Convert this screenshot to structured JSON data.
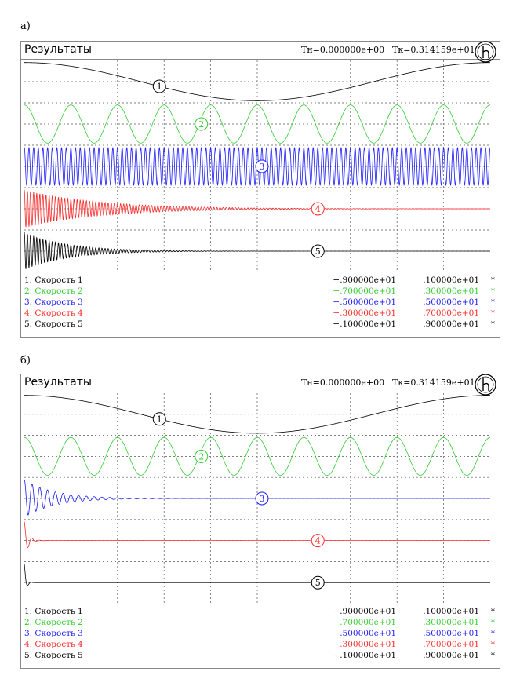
{
  "panels": [
    {
      "label": "а)",
      "title": "Результаты",
      "t_start": "Тн=0.000000e+00",
      "t_end": "Тк=0.314159e+01",
      "legend": [
        {
          "name": "1. Скорость 1",
          "min": "−.900000e+01",
          "max": ".100000e+01",
          "mark": "*",
          "color": "#000000"
        },
        {
          "name": "2. Скорость 2",
          "min": "−.700000e+01",
          "max": ".300000e+01",
          "mark": "*",
          "color": "#33cc33"
        },
        {
          "name": "3. Скорость 3",
          "min": "−.500000e+01",
          "max": ".500000e+01",
          "mark": "*",
          "color": "#1a1aff"
        },
        {
          "name": "4. Скорость 4",
          "min": "−.300000e+01",
          "max": ".700000e+01",
          "mark": "*",
          "color": "#ff2a2a"
        },
        {
          "name": "5. Скорость 5",
          "min": "−.100000e+01",
          "max": ".900000e+01",
          "mark": "*",
          "color": "#000000"
        }
      ]
    },
    {
      "label": "б)",
      "title": "Результаты",
      "t_start": "Тн=0.000000e+00",
      "t_end": "Тк=0.314159e+01",
      "legend": [
        {
          "name": "1. Скорость 1",
          "min": "−.900000e+01",
          "max": ".100000e+01",
          "mark": "*",
          "color": "#000000"
        },
        {
          "name": "2. Скорость 2",
          "min": "−.700000e+01",
          "max": ".300000e+01",
          "mark": "*",
          "color": "#33cc33"
        },
        {
          "name": "3. Скорость 3",
          "min": "−.500000e+01",
          "max": ".500000e+01",
          "mark": "*",
          "color": "#1a1aff"
        },
        {
          "name": "4. Скорость 4",
          "min": "−.300000e+01",
          "max": ".700000e+01",
          "mark": "*",
          "color": "#ff2a2a"
        },
        {
          "name": "5. Скорость 5",
          "min": "−.100000e+01",
          "max": ".900000e+01",
          "mark": "*",
          "color": "#000000"
        }
      ]
    }
  ],
  "chart_data": [
    {
      "type": "line",
      "x_range": [
        0,
        3.14159
      ],
      "grid": true,
      "series": [
        {
          "name": "1",
          "color": "#000000",
          "kind": "cosine",
          "cycles": 1,
          "amplitude": 1,
          "decay": 0
        },
        {
          "name": "2",
          "color": "#33cc33",
          "kind": "cosine",
          "cycles": 10,
          "amplitude": 1,
          "decay": 0
        },
        {
          "name": "3",
          "color": "#1a1aff",
          "kind": "cosine",
          "cycles": 100,
          "amplitude": 1,
          "decay": 0
        },
        {
          "name": "4",
          "color": "#ff2a2a",
          "kind": "damped",
          "cycles": 150,
          "amplitude": 1,
          "decay": 2.0
        },
        {
          "name": "5",
          "color": "#000000",
          "kind": "damped",
          "cycles": 150,
          "amplitude": 1,
          "decay": 3.5
        }
      ]
    },
    {
      "type": "line",
      "x_range": [
        0,
        3.14159
      ],
      "grid": true,
      "series": [
        {
          "name": "1",
          "color": "#000000",
          "kind": "cosine",
          "cycles": 1,
          "amplitude": 1,
          "decay": 0
        },
        {
          "name": "2",
          "color": "#33cc33",
          "kind": "cosine",
          "cycles": 10,
          "amplitude": 1,
          "decay": 0
        },
        {
          "name": "3",
          "color": "#1a1aff",
          "kind": "damped",
          "cycles": 60,
          "amplitude": 1,
          "decay": 5.0
        },
        {
          "name": "4",
          "color": "#ff2a2a",
          "kind": "damped",
          "cycles": 60,
          "amplitude": 1,
          "decay": 40
        },
        {
          "name": "5",
          "color": "#000000",
          "kind": "damped",
          "cycles": 60,
          "amplitude": 1,
          "decay": 80
        }
      ]
    }
  ]
}
